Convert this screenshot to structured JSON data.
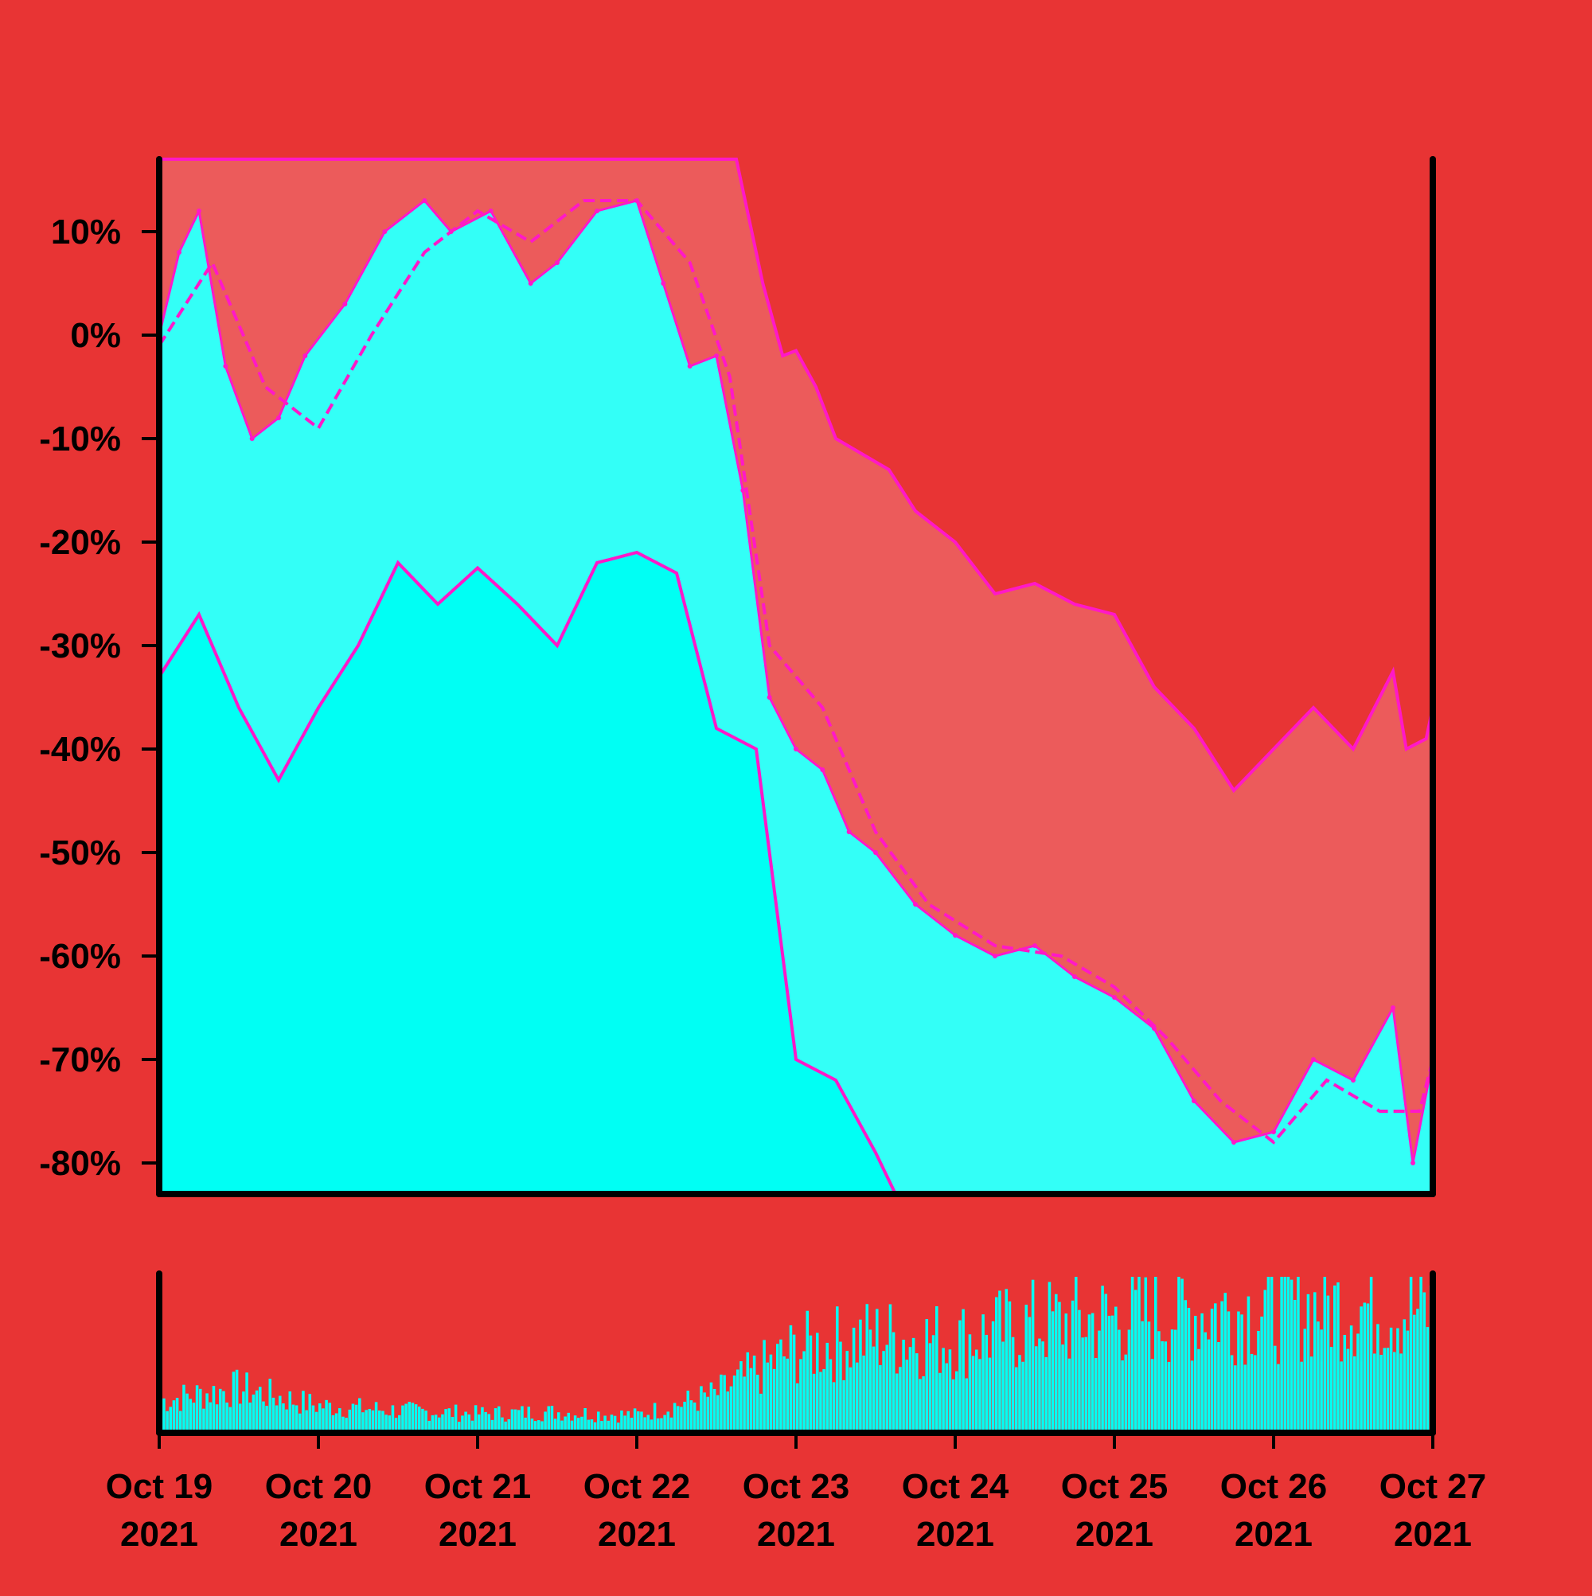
{
  "colors": {
    "background": "#e83434",
    "band_fill": "#ec5b5b",
    "price_fill": "#33fff7",
    "lower_fill": "#00fff4",
    "line": "#ff18c8",
    "axis": "#000000",
    "volume": "#00fff4"
  },
  "chart_data": {
    "type": "area",
    "x_start": "2021-10-19",
    "x_end": "2021-10-27",
    "y_unit": "%",
    "ylim": [
      -83,
      17
    ],
    "grid": false,
    "yticks": [
      10,
      0,
      -10,
      -20,
      -30,
      -40,
      -50,
      -60,
      -70,
      -80
    ],
    "ytick_labels": [
      "10%",
      "0%",
      "-10%",
      "-20%",
      "-30%",
      "-40%",
      "-50%",
      "-60%",
      "-70%",
      "-80%"
    ],
    "xticks": [
      {
        "date": "2021-10-19",
        "line1": "Oct 19",
        "line2": "2021"
      },
      {
        "date": "2021-10-20",
        "line1": "Oct 20",
        "line2": "2021"
      },
      {
        "date": "2021-10-21",
        "line1": "Oct 21",
        "line2": "2021"
      },
      {
        "date": "2021-10-22",
        "line1": "Oct 22",
        "line2": "2021"
      },
      {
        "date": "2021-10-23",
        "line1": "Oct 23",
        "line2": "2021"
      },
      {
        "date": "2021-10-24",
        "line1": "Oct 24",
        "line2": "2021"
      },
      {
        "date": "2021-10-25",
        "line1": "Oct 25",
        "line2": "2021"
      },
      {
        "date": "2021-10-26",
        "line1": "Oct 26",
        "line2": "2021"
      },
      {
        "date": "2021-10-27",
        "line1": "Oct 27",
        "line2": "2021"
      }
    ],
    "series": [
      {
        "role": "upper band",
        "x": [
          "2021-10-19 00:00",
          "2021-10-20 00:00",
          "2021-10-21 00:00",
          "2021-10-22 00:00",
          "2021-10-22 15:00",
          "2021-10-22 19:00",
          "2021-10-22 22:00",
          "2021-10-23 00:00",
          "2021-10-23 03:00",
          "2021-10-23 06:00",
          "2021-10-23 10:00",
          "2021-10-23 14:00",
          "2021-10-23 18:00",
          "2021-10-24 00:00",
          "2021-10-24 06:00",
          "2021-10-24 12:00",
          "2021-10-24 18:00",
          "2021-10-25 00:00",
          "2021-10-25 06:00",
          "2021-10-25 12:00",
          "2021-10-25 18:00",
          "2021-10-26 00:00",
          "2021-10-26 06:00",
          "2021-10-26 12:00",
          "2021-10-26 18:00",
          "2021-10-26 20:00",
          "2021-10-26 23:00",
          "2021-10-27 00:00"
        ],
        "values": [
          17,
          17,
          17,
          17,
          17,
          5,
          -2,
          -1.5,
          -5,
          -10,
          -11.5,
          -13,
          -17,
          -20,
          -25,
          -24,
          -26,
          -27,
          -34,
          -38,
          -44,
          -40,
          -36,
          -40,
          -32.5,
          -40,
          -39,
          -36
        ]
      },
      {
        "role": "price",
        "x": [
          "2021-10-19 00:00",
          "2021-10-19 03:00",
          "2021-10-19 06:00",
          "2021-10-19 10:00",
          "2021-10-19 14:00",
          "2021-10-19 18:00",
          "2021-10-19 22:00",
          "2021-10-20 04:00",
          "2021-10-20 10:00",
          "2021-10-20 16:00",
          "2021-10-20 20:00",
          "2021-10-21 02:00",
          "2021-10-21 08:00",
          "2021-10-21 12:00",
          "2021-10-21 18:00",
          "2021-10-22 00:00",
          "2021-10-22 04:00",
          "2021-10-22 08:00",
          "2021-10-22 12:00",
          "2021-10-22 16:00",
          "2021-10-22 20:00",
          "2021-10-23 00:00",
          "2021-10-23 04:00",
          "2021-10-23 08:00",
          "2021-10-23 12:00",
          "2021-10-23 18:00",
          "2021-10-24 00:00",
          "2021-10-24 06:00",
          "2021-10-24 12:00",
          "2021-10-24 18:00",
          "2021-10-25 00:00",
          "2021-10-25 06:00",
          "2021-10-25 12:00",
          "2021-10-25 18:00",
          "2021-10-26 00:00",
          "2021-10-26 06:00",
          "2021-10-26 12:00",
          "2021-10-26 18:00",
          "2021-10-26 21:00",
          "2021-10-27 00:00"
        ],
        "values": [
          0,
          8,
          12,
          -3,
          -10,
          -8,
          -2,
          3,
          10,
          13,
          10,
          12,
          5,
          7,
          12,
          13,
          5,
          -3,
          -2,
          -15,
          -35,
          -40,
          -42,
          -48,
          -50,
          -55,
          -58,
          -60,
          -59,
          -62,
          -64,
          -67,
          -74,
          -78,
          -77,
          -70,
          -72,
          -65,
          -80,
          -70
        ]
      },
      {
        "role": "moving average",
        "style": "dashed",
        "x": [
          "2021-10-19 00:00",
          "2021-10-19 08:00",
          "2021-10-19 16:00",
          "2021-10-20 00:00",
          "2021-10-20 08:00",
          "2021-10-20 16:00",
          "2021-10-21 00:00",
          "2021-10-21 08:00",
          "2021-10-21 16:00",
          "2021-10-22 00:00",
          "2021-10-22 08:00",
          "2021-10-22 14:00",
          "2021-10-22 20:00",
          "2021-10-23 04:00",
          "2021-10-23 12:00",
          "2021-10-23 20:00",
          "2021-10-24 06:00",
          "2021-10-24 16:00",
          "2021-10-25 00:00",
          "2021-10-25 08:00",
          "2021-10-25 16:00",
          "2021-10-26 00:00",
          "2021-10-26 08:00",
          "2021-10-26 16:00",
          "2021-10-26 22:00",
          "2021-10-27 00:00"
        ],
        "values": [
          -1,
          7,
          -5,
          -9,
          0,
          8,
          12,
          9,
          13,
          13,
          7,
          -4,
          -30,
          -36,
          -48,
          -55,
          -59,
          -60,
          -63,
          -68,
          -74,
          -78,
          -72,
          -75,
          -75,
          -70
        ]
      },
      {
        "role": "lower band",
        "x": [
          "2021-10-19 00:00",
          "2021-10-19 06:00",
          "2021-10-19 12:00",
          "2021-10-19 18:00",
          "2021-10-20 00:00",
          "2021-10-20 06:00",
          "2021-10-20 12:00",
          "2021-10-20 18:00",
          "2021-10-21 00:00",
          "2021-10-21 06:00",
          "2021-10-21 12:00",
          "2021-10-21 18:00",
          "2021-10-22 00:00",
          "2021-10-22 06:00",
          "2021-10-22 12:00",
          "2021-10-22 18:00",
          "2021-10-23 00:00",
          "2021-10-23 06:00",
          "2021-10-23 12:00",
          "2021-10-23 15:00"
        ],
        "values": [
          -33,
          -27,
          -36,
          -43,
          -36,
          -30,
          -22,
          -26,
          -22.5,
          -26,
          -30,
          -22,
          -21,
          -23,
          -38,
          -40,
          -70,
          -72,
          -79,
          -83
        ]
      }
    ],
    "volume": {
      "ylim": [
        0,
        1
      ],
      "x": [
        "2021-10-19 00:00",
        "2021-10-19 12:00",
        "2021-10-20 00:00",
        "2021-10-20 12:00",
        "2021-10-21 00:00",
        "2021-10-21 12:00",
        "2021-10-22 00:00",
        "2021-10-22 12:00",
        "2021-10-23 00:00",
        "2021-10-23 12:00",
        "2021-10-24 00:00",
        "2021-10-24 12:00",
        "2021-10-25 00:00",
        "2021-10-25 12:00",
        "2021-10-26 00:00",
        "2021-10-26 12:00",
        "2021-10-27 00:00"
      ],
      "values": [
        0.2,
        0.28,
        0.17,
        0.14,
        0.12,
        0.13,
        0.11,
        0.24,
        0.52,
        0.6,
        0.58,
        0.68,
        0.72,
        0.76,
        0.78,
        0.8,
        0.76
      ]
    }
  }
}
